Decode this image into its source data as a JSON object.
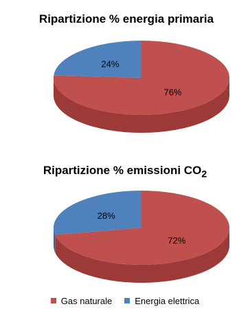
{
  "chart_data": [
    {
      "type": "pie",
      "style": "3d",
      "title": "Ripartizione % energia primaria",
      "slices": [
        {
          "series": "Gas naturale",
          "value": 76,
          "label": "76%"
        },
        {
          "series": "Energia elettrica",
          "value": 24,
          "label": "24%"
        }
      ]
    },
    {
      "type": "pie",
      "style": "3d",
      "title_main": "Ripartizione % emissioni CO",
      "title_subscript": "2",
      "slices": [
        {
          "series": "Gas naturale",
          "value": 72,
          "label": "72%"
        },
        {
          "series": "Energia elettrica",
          "value": 28,
          "label": "28%"
        }
      ]
    }
  ],
  "legend": {
    "placement": "bottom",
    "items": [
      {
        "label": "Gas naturale",
        "color": "#c0504d",
        "side_color": "#9b3a38"
      },
      {
        "label": "Energia elettrica",
        "color": "#4f81bd",
        "side_color": "#3a6596"
      }
    ]
  }
}
